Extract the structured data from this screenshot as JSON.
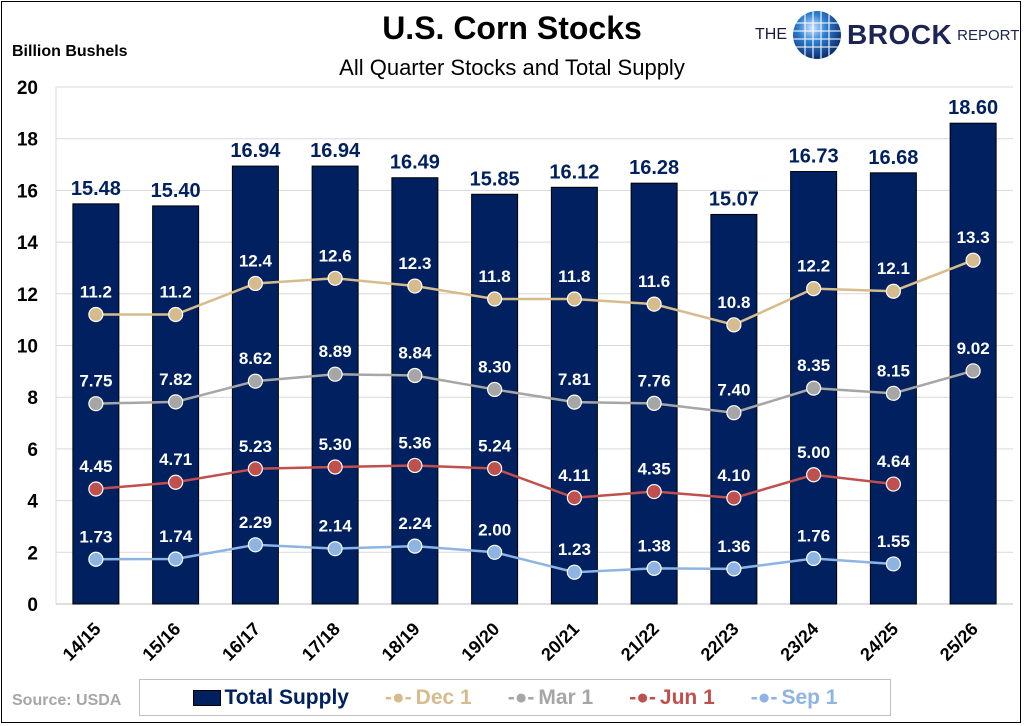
{
  "header": {
    "title": "U.S. Corn Stocks",
    "subtitle": "All Quarter Stocks and Total Supply",
    "y_unit_label": "Billion Bushels",
    "logo": {
      "the": "THE",
      "brand": "BROCK",
      "report": "REPORT",
      "icon": "globe-icon"
    }
  },
  "footer": {
    "source": "Source: USDA"
  },
  "colors": {
    "total_supply": "#002060",
    "dec1": "#D6BC8C",
    "mar1": "#A6A6A6",
    "jun1": "#C0504D",
    "sep1": "#8DB4E2",
    "bar_label": "#002060",
    "point_label": "#FFFFFF",
    "grid": "#D9D9D9"
  },
  "legend": [
    {
      "name": "Total Supply",
      "marker": "bar",
      "glyph": "■"
    },
    {
      "name": "Dec 1",
      "marker": "line-dot",
      "glyph": "-●-"
    },
    {
      "name": "Mar 1",
      "marker": "line-dot",
      "glyph": "-●-"
    },
    {
      "name": "Jun 1",
      "marker": "line-dot",
      "glyph": "-●-"
    },
    {
      "name": "Sep 1",
      "marker": "line-dot",
      "glyph": "-●-"
    }
  ],
  "chart_data": {
    "type": "bar",
    "title": "U.S. Corn Stocks",
    "subtitle": "All Quarter Stocks and Total Supply",
    "xlabel": "",
    "ylabel": "Billion Bushels",
    "ylim": [
      0,
      20
    ],
    "yticks": [
      0,
      2,
      4,
      6,
      8,
      10,
      12,
      14,
      16,
      18,
      20
    ],
    "grid": true,
    "legend_position": "bottom",
    "categories": [
      "14/15",
      "15/16",
      "16/17",
      "17/18",
      "18/19",
      "19/20",
      "20/21",
      "21/22",
      "22/23",
      "23/24",
      "24/25",
      "25/26"
    ],
    "series": [
      {
        "name": "Total Supply",
        "type": "bar",
        "values": [
          15.48,
          15.4,
          16.94,
          16.94,
          16.49,
          15.85,
          16.12,
          16.28,
          15.07,
          16.73,
          16.68,
          18.6
        ],
        "labels": [
          "15.48",
          "15.40",
          "16.94",
          "16.94",
          "16.49",
          "15.85",
          "16.12",
          "16.28",
          "15.07",
          "16.73",
          "16.68",
          "18.60"
        ]
      },
      {
        "name": "Dec 1",
        "type": "line",
        "values": [
          11.2,
          11.2,
          12.4,
          12.6,
          12.3,
          11.8,
          11.8,
          11.6,
          10.8,
          12.2,
          12.1,
          13.3
        ],
        "labels": [
          "11.2",
          "11.2",
          "12.4",
          "12.6",
          "12.3",
          "11.8",
          "11.8",
          "11.6",
          "10.8",
          "12.2",
          "12.1",
          "13.3"
        ]
      },
      {
        "name": "Mar 1",
        "type": "line",
        "values": [
          7.75,
          7.82,
          8.62,
          8.89,
          8.84,
          8.3,
          7.81,
          7.76,
          7.4,
          8.35,
          8.15,
          9.02
        ],
        "labels": [
          "7.75",
          "7.82",
          "8.62",
          "8.89",
          "8.84",
          "8.30",
          "7.81",
          "7.76",
          "7.40",
          "8.35",
          "8.15",
          "9.02"
        ]
      },
      {
        "name": "Jun 1",
        "type": "line",
        "values": [
          4.45,
          4.71,
          5.23,
          5.3,
          5.36,
          5.24,
          4.11,
          4.35,
          4.1,
          5.0,
          4.64,
          null
        ],
        "labels": [
          "4.45",
          "4.71",
          "5.23",
          "5.30",
          "5.36",
          "5.24",
          "4.11",
          "4.35",
          "4.10",
          "5.00",
          "4.64",
          null
        ]
      },
      {
        "name": "Sep 1",
        "type": "line",
        "values": [
          1.73,
          1.74,
          2.29,
          2.14,
          2.24,
          2.0,
          1.23,
          1.38,
          1.36,
          1.76,
          1.55,
          null
        ],
        "labels": [
          "1.73",
          "1.74",
          "2.29",
          "2.14",
          "2.24",
          "2.00",
          "1.23",
          "1.38",
          "1.36",
          "1.76",
          "1.55",
          null
        ]
      }
    ]
  }
}
